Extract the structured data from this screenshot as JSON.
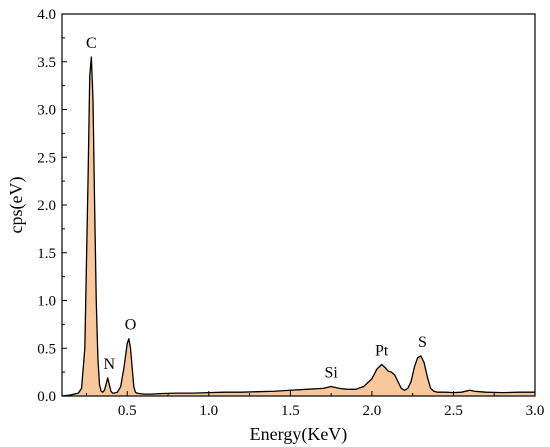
{
  "chart_data": {
    "type": "area",
    "title": "",
    "xlabel": "Energy(KeV)",
    "ylabel": "cps(eV)",
    "xlim": [
      0.1,
      3.0
    ],
    "ylim": [
      0,
      4.0
    ],
    "xticks": [
      0.5,
      1.0,
      1.5,
      2.0,
      2.5,
      3.0
    ],
    "xtick_labels": [
      "0.5",
      "1.0",
      "1.5",
      "2.0",
      "2.5",
      "3.0"
    ],
    "yticks": [
      0,
      0.5,
      1.0,
      1.5,
      2.0,
      2.5,
      3.0,
      3.5,
      4.0
    ],
    "ytick_labels": [
      "0.0",
      "0.5",
      "1.0",
      "1.5",
      "2.0",
      "2.5",
      "3.0",
      "3.5",
      "4.0"
    ],
    "grid": false,
    "legend": "none",
    "fill_color": "#f8c89a",
    "line_color": "#000000",
    "series": [
      {
        "x": [
          0.1,
          0.15,
          0.2,
          0.22,
          0.24,
          0.26,
          0.27,
          0.28,
          0.29,
          0.3,
          0.31,
          0.32,
          0.33,
          0.34,
          0.35,
          0.36,
          0.37,
          0.38,
          0.39,
          0.4,
          0.41,
          0.42,
          0.44,
          0.46,
          0.48,
          0.5,
          0.51,
          0.52,
          0.53,
          0.54,
          0.55,
          0.56,
          0.58,
          0.6,
          0.65,
          0.7,
          0.8,
          0.9,
          1.0,
          1.1,
          1.2,
          1.3,
          1.4,
          1.5,
          1.6,
          1.7,
          1.75,
          1.8,
          1.85,
          1.9,
          1.95,
          2.0,
          2.03,
          2.06,
          2.08,
          2.1,
          2.12,
          2.14,
          2.16,
          2.18,
          2.2,
          2.22,
          2.24,
          2.26,
          2.28,
          2.3,
          2.32,
          2.34,
          2.36,
          2.38,
          2.4,
          2.45,
          2.5,
          2.55,
          2.6,
          2.63,
          2.66,
          2.7,
          2.8,
          2.9,
          3.0
        ],
        "y": [
          0.0,
          0.01,
          0.03,
          0.08,
          0.5,
          2.3,
          3.35,
          3.55,
          3.1,
          2.0,
          1.0,
          0.4,
          0.12,
          0.05,
          0.04,
          0.06,
          0.12,
          0.19,
          0.12,
          0.05,
          0.03,
          0.03,
          0.04,
          0.1,
          0.3,
          0.55,
          0.6,
          0.5,
          0.3,
          0.1,
          0.04,
          0.03,
          0.025,
          0.02,
          0.02,
          0.025,
          0.03,
          0.03,
          0.035,
          0.04,
          0.04,
          0.045,
          0.05,
          0.06,
          0.07,
          0.08,
          0.1,
          0.08,
          0.07,
          0.07,
          0.1,
          0.18,
          0.28,
          0.33,
          0.3,
          0.26,
          0.25,
          0.22,
          0.15,
          0.08,
          0.06,
          0.08,
          0.15,
          0.3,
          0.4,
          0.42,
          0.35,
          0.2,
          0.08,
          0.05,
          0.04,
          0.04,
          0.035,
          0.04,
          0.06,
          0.05,
          0.045,
          0.04,
          0.035,
          0.04,
          0.04
        ]
      }
    ],
    "peak_labels": [
      {
        "text": "C",
        "x": 0.28,
        "y": 3.55
      },
      {
        "text": "N",
        "x": 0.39,
        "y": 0.19
      },
      {
        "text": "O",
        "x": 0.52,
        "y": 0.6
      },
      {
        "text": "Si",
        "x": 1.75,
        "y": 0.1
      },
      {
        "text": "Pt",
        "x": 2.06,
        "y": 0.33
      },
      {
        "text": "S",
        "x": 2.31,
        "y": 0.42
      }
    ]
  }
}
